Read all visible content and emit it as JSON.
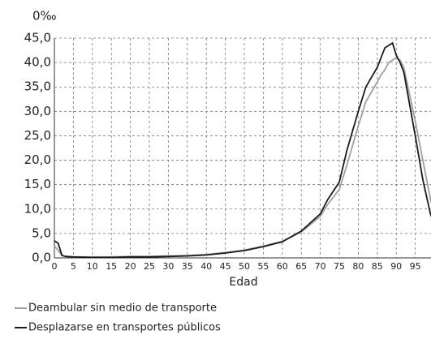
{
  "chart_data": {
    "type": "line",
    "y_unit_label": "0‰",
    "x_label": "Edad",
    "x": [
      0,
      1,
      2,
      3,
      5,
      10,
      15,
      20,
      25,
      30,
      35,
      40,
      45,
      50,
      55,
      60,
      65,
      70,
      72,
      75,
      77,
      80,
      82,
      85,
      86,
      87,
      88,
      89,
      90,
      91,
      92,
      95,
      97,
      99,
      100
    ],
    "series": [
      {
        "name": "Deambular sin medio de transporte",
        "color": "#a0a0a0",
        "values": [
          2.5,
          1.5,
          0.5,
          0.3,
          0.2,
          0.2,
          0.2,
          0.3,
          0.3,
          0.4,
          0.5,
          0.7,
          1.1,
          1.6,
          2.4,
          3.4,
          5.3,
          8.5,
          11,
          14,
          19,
          27,
          32,
          36,
          37.5,
          38.5,
          40,
          40.5,
          41,
          40.5,
          39,
          28,
          20,
          12,
          9
        ]
      },
      {
        "name": "Desplazarse en transportes públicos",
        "color": "#1a1a1a",
        "values": [
          3.5,
          3.0,
          0.5,
          0.3,
          0.2,
          0.1,
          0.1,
          0.2,
          0.2,
          0.3,
          0.4,
          0.6,
          1.0,
          1.5,
          2.3,
          3.3,
          5.5,
          9.0,
          12,
          15.5,
          22,
          30,
          35,
          39,
          41,
          43,
          43.5,
          44,
          41.5,
          40,
          38,
          25,
          16,
          9,
          7
        ]
      }
    ],
    "xlim": [
      0,
      100
    ],
    "xticks": [
      0,
      5,
      10,
      15,
      20,
      25,
      30,
      35,
      40,
      45,
      50,
      55,
      60,
      65,
      70,
      75,
      80,
      85,
      90,
      95
    ],
    "ylim": [
      0,
      45
    ],
    "yticks": [
      {
        "value": 0,
        "label": "0,0"
      },
      {
        "value": 5,
        "label": "5,0"
      },
      {
        "value": 10,
        "label": "10,0"
      },
      {
        "value": 15,
        "label": "15,0"
      },
      {
        "value": 20,
        "label": "20,0"
      },
      {
        "value": 25,
        "label": "25,0"
      },
      {
        "value": 30,
        "label": "30,0"
      },
      {
        "value": 35,
        "label": "35,0"
      },
      {
        "value": 40,
        "label": "40,0"
      },
      {
        "value": 45,
        "label": "45,0"
      }
    ],
    "grid": true,
    "legend": "bottom"
  }
}
